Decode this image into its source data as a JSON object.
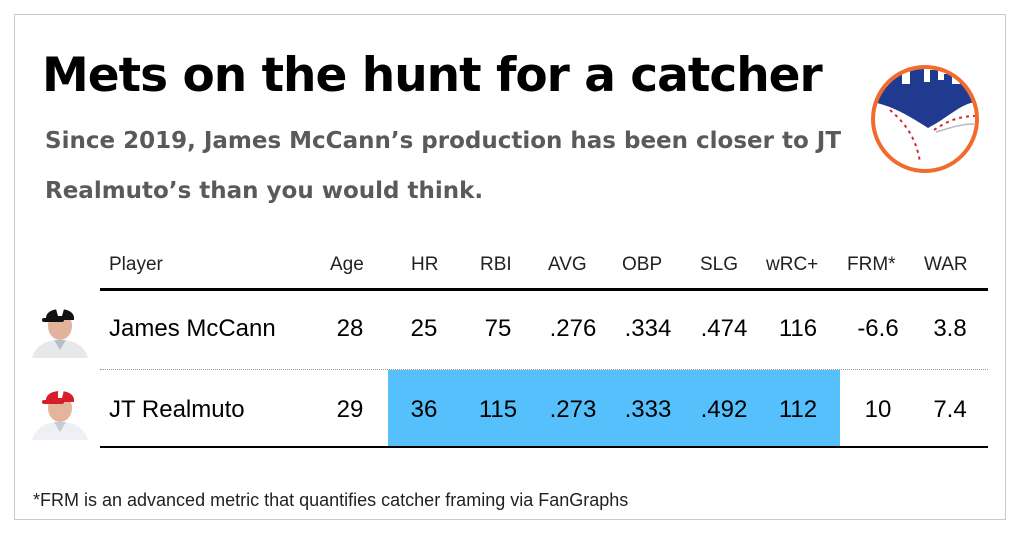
{
  "title": "Mets on the hunt for a catcher",
  "subtitle": "Since 2019, James McCann’s production has been closer to JT Realmuto’s than you would think.",
  "logo_icon": "skyline-baseball-logo",
  "colors": {
    "highlight": "#55c0fb",
    "logo_blue": "#1f3a8f",
    "logo_orange": "#f26b2c",
    "logo_red": "#d6262f",
    "subtitle": "#5a5a5a"
  },
  "table": {
    "headers": {
      "player": "Player",
      "age": "Age",
      "hr": "HR",
      "rbi": "RBI",
      "avg": "AVG",
      "obp": "OBP",
      "slg": "SLG",
      "wrc": "wRC+",
      "frm": "FRM*",
      "war": "WAR"
    },
    "rows": [
      {
        "headshot_icon": "white-sox-player-headshot",
        "player": "James McCann",
        "age": "28",
        "hr": "25",
        "rbi": "75",
        "avg": ".276",
        "obp": ".334",
        "slg": ".474",
        "wrc": "116",
        "frm": "-6.6",
        "war": "3.8"
      },
      {
        "headshot_icon": "phillies-player-headshot",
        "player": "JT Realmuto",
        "age": "29",
        "hr": "36",
        "rbi": "115",
        "avg": ".273",
        "obp": ".333",
        "slg": ".492",
        "wrc": "112",
        "frm": "10",
        "war": "7.4"
      }
    ]
  },
  "footnote": "*FRM is an advanced metric that quantifies catcher framing via FanGraphs"
}
